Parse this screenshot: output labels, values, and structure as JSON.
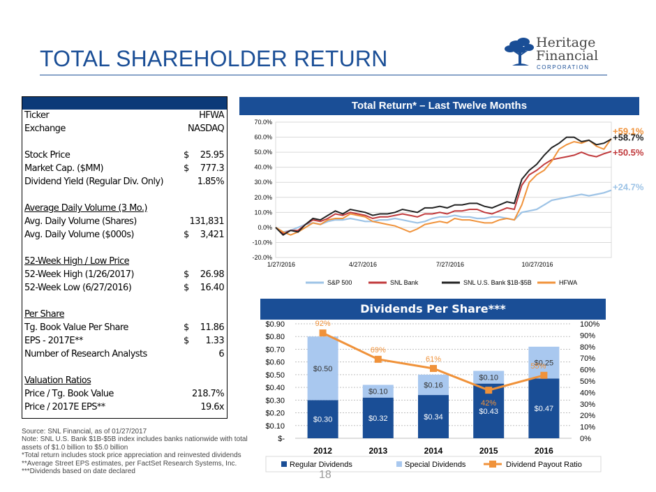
{
  "title": "TOTAL SHAREHOLDER RETURN",
  "logo": {
    "line1": "Heritage",
    "line2": "Financial",
    "line3": "CORPORATION",
    "colors": {
      "tree": "#1a4e96"
    }
  },
  "table": {
    "rows": [
      {
        "label": "Ticker",
        "value": "HFWA"
      },
      {
        "label": "Exchange",
        "value": "NASDAQ"
      },
      {
        "label": "Stock Price",
        "cur": "$",
        "value": "25.95"
      },
      {
        "label": "Market Cap. ($MM)",
        "cur": "$",
        "value": "777.3"
      },
      {
        "label": "Dividend Yield (Regular Div. Only)",
        "value": "1.85%"
      },
      {
        "label": "Average Daily Volume (3 Mo.)",
        "underline": true
      },
      {
        "label": "Avg. Daily Volume (Shares)",
        "value": "131,831"
      },
      {
        "label": "Avg. Daily Volume ($000s)",
        "cur": "$",
        "value": "3,421"
      },
      {
        "label": "52-Week High / Low Price",
        "underline": true
      },
      {
        "label": "52-Week High (1/26/2017)",
        "cur": "$",
        "value": "26.98"
      },
      {
        "label": "52-Week Low (6/27/2016)",
        "cur": "$",
        "value": "16.40"
      },
      {
        "label": "Per Share",
        "underline": true
      },
      {
        "label": "Tg. Book Value Per Share",
        "cur": "$",
        "value": "11.86"
      },
      {
        "label": "EPS - 2017E**",
        "cur": "$",
        "value": "1.33"
      },
      {
        "label": "Number of Research Analysts",
        "value": "6"
      },
      {
        "label": "Valuation Ratios",
        "underline": true
      },
      {
        "label": "Price / Tg. Book Value",
        "value": "218.7%"
      },
      {
        "label": "Price / 2017E EPS**",
        "value": "19.6x"
      }
    ]
  },
  "total_return": {
    "header": "Total Return* – Last Twelve Months"
  },
  "dividends": {
    "header": "Dividends Per Share***"
  },
  "notes": [
    "Source: SNL Financial, as of 01/27/2017",
    "Note: SNL U.S. Bank $1B-$5B index includes banks nationwide with total",
    "assets of $1.0 billion to $5.0 billion",
    "*Total return includes stock price appreciation and reinvested dividends",
    "**Average Street EPS estimates, per FactSet Research Systems, Inc.",
    "***Dividends based on date declared"
  ],
  "page_number": "18",
  "chart_data": [
    {
      "type": "line",
      "x_ticks": [
        "1/27/2016",
        "4/27/2016",
        "7/27/2016",
        "10/27/2016"
      ],
      "y_ticks": [
        "-20.0%",
        "-10.0%",
        "0.0%",
        "10.0%",
        "20.0%",
        "30.0%",
        "40.0%",
        "50.0%",
        "60.0%",
        "70.0%"
      ],
      "ylim": [
        -20,
        70
      ],
      "grid": true,
      "legend": "bottom",
      "series": [
        {
          "name": "S&P 500",
          "color": "#9dc3e6",
          "end_label": "+24.7%",
          "values": [
            0,
            -3,
            -2,
            0,
            2,
            3,
            2,
            4,
            5,
            5,
            6,
            5,
            4,
            4,
            5,
            5,
            6,
            5,
            4,
            3,
            4,
            6,
            7,
            7,
            8,
            7,
            7,
            6,
            6,
            7,
            7,
            6,
            5,
            10,
            11,
            12,
            15,
            18,
            19,
            20,
            21,
            22,
            21,
            22,
            23,
            24.7
          ]
        },
        {
          "name": "SNL Bank",
          "color": "#c0393b",
          "end_label": "+50.5%",
          "values": [
            0,
            -4,
            -2,
            -2,
            2,
            5,
            4,
            6,
            9,
            8,
            10,
            9,
            8,
            6,
            7,
            7,
            8,
            9,
            8,
            7,
            9,
            9,
            10,
            9,
            11,
            11,
            12,
            12,
            10,
            9,
            11,
            13,
            12,
            28,
            35,
            38,
            42,
            45,
            46,
            47,
            48,
            50,
            48,
            47,
            49,
            50.5
          ]
        },
        {
          "name": "SNL U.S. Bank $1B-$5B",
          "color": "#222222",
          "end_label": "+58.7%",
          "values": [
            0,
            -5,
            -2,
            -3,
            2,
            6,
            5,
            8,
            11,
            9,
            12,
            11,
            10,
            8,
            9,
            9,
            10,
            12,
            11,
            10,
            13,
            13,
            14,
            13,
            15,
            15,
            16,
            16,
            14,
            13,
            15,
            17,
            16,
            32,
            38,
            42,
            48,
            53,
            56,
            60,
            60,
            57,
            58,
            55,
            56,
            58.7
          ]
        },
        {
          "name": "HFWA",
          "color": "#f0923a",
          "end_label": "+59.1%",
          "values": [
            0,
            -3,
            -5,
            -3,
            0,
            3,
            2,
            5,
            6,
            6,
            9,
            8,
            7,
            4,
            3,
            2,
            1,
            -1,
            -3,
            -1,
            2,
            3,
            4,
            3,
            6,
            5,
            5,
            4,
            3,
            3,
            5,
            6,
            5,
            15,
            30,
            35,
            38,
            44,
            52,
            55,
            57,
            56,
            58,
            54,
            52,
            59.1
          ]
        }
      ]
    },
    {
      "type": "bar",
      "categories": [
        "2012",
        "2013",
        "2014",
        "2015",
        "2016"
      ],
      "y_ticks": [
        "$-",
        "$0.10",
        "$0.20",
        "$0.30",
        "$0.40",
        "$0.50",
        "$0.60",
        "$0.70",
        "$0.80",
        "$0.90"
      ],
      "y2_ticks": [
        "0%",
        "10%",
        "20%",
        "30%",
        "40%",
        "50%",
        "60%",
        "70%",
        "80%",
        "90%",
        "100%"
      ],
      "ylim": [
        0,
        0.9
      ],
      "y2lim": [
        0,
        100
      ],
      "stacked": true,
      "legend": "bottom",
      "series": [
        {
          "name": "Regular Dividends",
          "color": "#1a4e96",
          "values": [
            0.3,
            0.32,
            0.34,
            0.43,
            0.47
          ],
          "labels": [
            "$0.30",
            "$0.32",
            "$0.34",
            "$0.43",
            "$0.47"
          ]
        },
        {
          "name": "Special Dividends",
          "color": "#a9c8ef",
          "values": [
            0.5,
            0.1,
            0.16,
            0.1,
            0.25
          ],
          "labels": [
            "$0.50",
            "$0.10",
            "$0.16",
            "$0.10",
            "$0.25"
          ]
        }
      ],
      "line": {
        "name": "Dividend Payout Ratio",
        "color": "#f0923a",
        "values": [
          92,
          69,
          61,
          42,
          55
        ],
        "labels": [
          "92%",
          "69%",
          "61%",
          "42%",
          "55%"
        ]
      }
    }
  ]
}
